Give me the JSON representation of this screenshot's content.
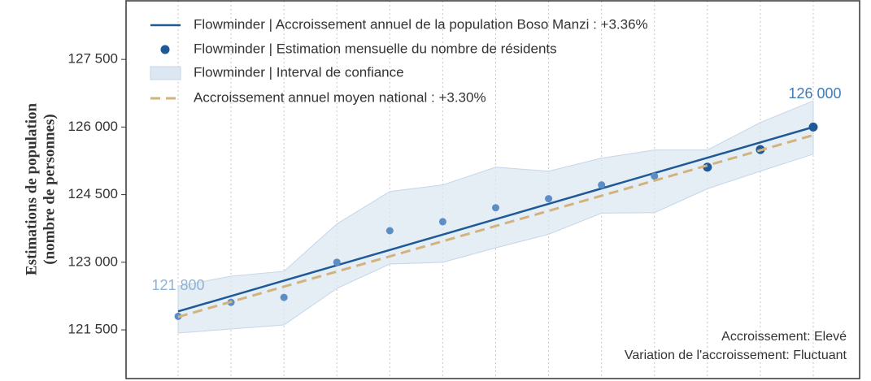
{
  "chart_data": {
    "type": "line",
    "ylabel": [
      "Estimations de population",
      "(nombre de personnes)"
    ],
    "categories": [
      null,
      null,
      null,
      null,
      null,
      null,
      null,
      null,
      null,
      null,
      null,
      null,
      null
    ],
    "ylim": [
      120420,
      128800
    ],
    "yticks": [
      {
        "value": 121500,
        "label": "121 500"
      },
      {
        "value": 123000,
        "label": "123 000"
      },
      {
        "value": 124500,
        "label": "124 500"
      },
      {
        "value": 126000,
        "label": "126 000"
      },
      {
        "value": 127500,
        "label": "127 500"
      }
    ],
    "band": {
      "name": "Flowminder | Interval de confiance",
      "color": "#dce7f2",
      "upper": [
        122470,
        122690,
        122800,
        123850,
        124570,
        124715,
        125110,
        125020,
        125310,
        125490,
        125490,
        126100,
        126580
      ],
      "lower": [
        121430,
        121520,
        121610,
        122420,
        122960,
        123000,
        123320,
        123620,
        124090,
        124100,
        124630,
        125020,
        125400
      ]
    },
    "series": [
      {
        "name": "Flowminder | Accroissement annuel de la population Boso Manzi : +3.36%",
        "color": "#1f5a96",
        "style": "line",
        "values": [
          121910,
          122251,
          122592,
          122933,
          123273,
          123614,
          123955,
          124296,
          124637,
          124978,
          125318,
          125659,
          126000
        ]
      },
      {
        "name": "Flowminder | Estimation mensuelle du nombre de résidents",
        "color": "#1f5a96",
        "style": "points",
        "point_colors": [
          "#5b8ec4",
          "#5b8ec4",
          "#5b8ec4",
          "#5b8ec4",
          "#5b8ec4",
          "#5b8ec4",
          "#5b8ec4",
          "#5b8ec4",
          "#5b8ec4",
          "#5b8ec4",
          "#1f5a96",
          "#1f5a96",
          "#1f5a96"
        ],
        "values": [
          121800,
          122110,
          122220,
          123000,
          123700,
          123900,
          124210,
          124410,
          124715,
          124910,
          125110,
          125500,
          126000
        ],
        "value_labels": [
          "121 800",
          null,
          null,
          null,
          null,
          null,
          null,
          null,
          null,
          null,
          null,
          null,
          "126 000"
        ],
        "label_colors": [
          "#8fb3d6",
          null,
          null,
          null,
          null,
          null,
          null,
          null,
          null,
          null,
          null,
          null,
          "#3f7cb8"
        ]
      },
      {
        "name": "Accroissement annuel moyen national : +3.30%",
        "color": "#d2b37e",
        "style": "dashed",
        "values": [
          121787,
          122123,
          122459,
          122795,
          123131,
          123467,
          123804,
          124140,
          124476,
          124812,
          125148,
          125484,
          125820
        ]
      }
    ],
    "annotations": [
      "Accroissement: Elevé",
      "Variation de l'accroissement: Fluctuant"
    ]
  }
}
